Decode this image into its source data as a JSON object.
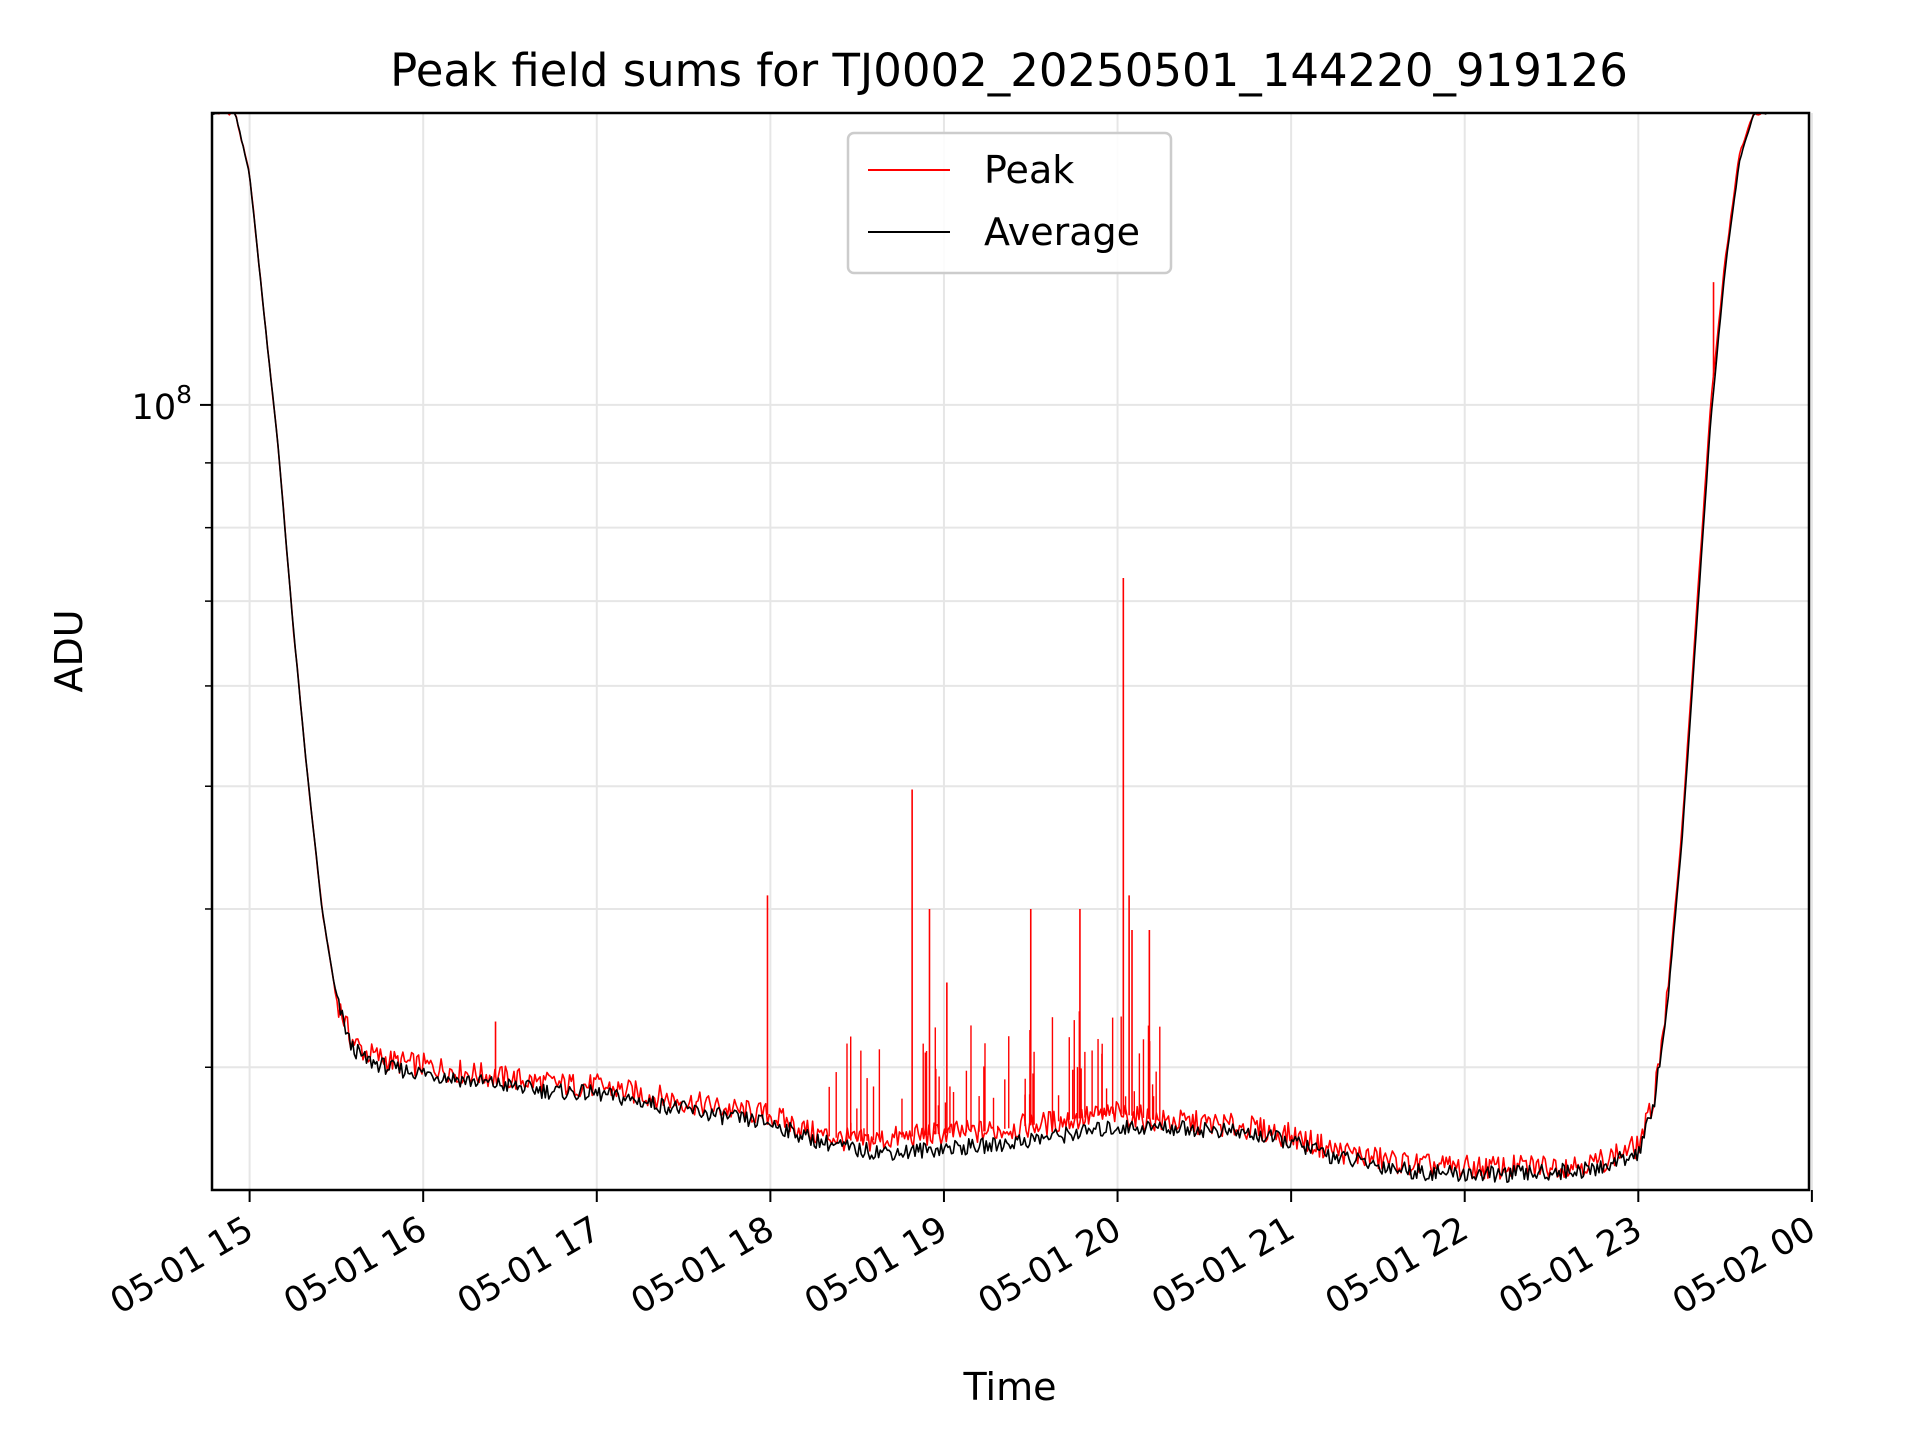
{
  "chart_data": {
    "type": "line",
    "title": "Peak field sums for TJ0002_20250501_144220_919126",
    "xlabel": "Time",
    "ylabel": "ADU",
    "yscale": "log",
    "grid": true,
    "legend_position": "top-center",
    "x_range": [
      "2025-05-01 14:47",
      "2025-05-01 23:59"
    ],
    "ylim": [
      24000000,
      170000000
    ],
    "x_ticks": [
      "05-01 15",
      "05-01 16",
      "05-01 17",
      "05-01 18",
      "05-01 19",
      "05-01 20",
      "05-01 21",
      "05-01 22",
      "05-01 23",
      "05-02 00"
    ],
    "y_ticks": [
      {
        "base": "10",
        "exp": "8",
        "value": 100000000
      }
    ],
    "colors": {
      "peak": "#ff0000",
      "average": "#000000"
    },
    "series": [
      {
        "name": "Peak",
        "color": "#ff0000",
        "x": [
          "14:47",
          "14:55",
          "15:00",
          "15:05",
          "15:10",
          "15:15",
          "15:20",
          "15:25",
          "15:30",
          "15:35",
          "15:40",
          "15:50",
          "16:00",
          "16:15",
          "16:30",
          "16:45",
          "17:00",
          "17:15",
          "17:30",
          "17:45",
          "18:00",
          "18:15",
          "18:30",
          "18:45",
          "19:00",
          "19:15",
          "19:30",
          "19:45",
          "20:00",
          "20:15",
          "20:30",
          "20:45",
          "21:00",
          "21:15",
          "21:30",
          "21:45",
          "22:00",
          "22:15",
          "22:30",
          "22:45",
          "23:00",
          "23:05",
          "23:10",
          "23:15",
          "23:20",
          "23:25",
          "23:30",
          "23:35",
          "23:40",
          "23:45"
        ],
        "y": [
          170000000,
          170000000,
          152000000,
          118000000,
          92000000,
          67000000,
          51000000,
          40000000,
          34000000,
          31600000,
          30800000,
          30300000,
          30100000,
          29700000,
          29400000,
          29100000,
          29000000,
          28600000,
          28200000,
          27800000,
          27500000,
          26600000,
          26200000,
          26400000,
          26600000,
          26700000,
          27000000,
          27300000,
          27600000,
          27200000,
          27100000,
          26900000,
          26500000,
          25800000,
          25400000,
          25100000,
          25000000,
          25000000,
          25100000,
          25200000,
          26000000,
          28000000,
          34000000,
          46000000,
          68000000,
          100000000,
          130000000,
          158000000,
          170000000,
          170000000
        ],
        "spikes": [
          {
            "x": "16:25",
            "y": 32600000
          },
          {
            "x": "17:59",
            "y": 41000000
          },
          {
            "x": "18:49",
            "y": 49700000
          },
          {
            "x": "18:55",
            "y": 40000000
          },
          {
            "x": "19:01",
            "y": 35000000
          },
          {
            "x": "19:30",
            "y": 40000000
          },
          {
            "x": "19:47",
            "y": 40000000
          },
          {
            "x": "20:02",
            "y": 73000000
          },
          {
            "x": "20:04",
            "y": 41000000
          },
          {
            "x": "20:05",
            "y": 38500000
          },
          {
            "x": "20:11",
            "y": 38500000
          },
          {
            "x": "23:26",
            "y": 125000000
          }
        ]
      },
      {
        "name": "Average",
        "color": "#000000",
        "x": [
          "14:47",
          "14:55",
          "15:00",
          "15:05",
          "15:10",
          "15:15",
          "15:20",
          "15:25",
          "15:30",
          "15:35",
          "15:40",
          "15:50",
          "16:00",
          "16:15",
          "16:30",
          "16:45",
          "17:00",
          "17:15",
          "17:30",
          "17:45",
          "18:00",
          "18:15",
          "18:30",
          "18:45",
          "19:00",
          "19:15",
          "19:30",
          "19:45",
          "20:00",
          "20:15",
          "20:30",
          "20:45",
          "21:00",
          "21:15",
          "21:30",
          "21:45",
          "22:00",
          "22:15",
          "22:30",
          "22:45",
          "23:00",
          "23:05",
          "23:10",
          "23:15",
          "23:20",
          "23:25",
          "23:30",
          "23:35",
          "23:40",
          "23:45"
        ],
        "y": [
          170000000,
          170000000,
          152000000,
          118000000,
          92000000,
          67000000,
          51000000,
          40000000,
          34000000,
          31200000,
          30400000,
          29900000,
          29700000,
          29300000,
          29000000,
          28700000,
          28600000,
          28200000,
          27800000,
          27400000,
          27100000,
          26300000,
          25800000,
          25700000,
          25900000,
          26000000,
          26300000,
          26600000,
          26900000,
          26900000,
          26800000,
          26600000,
          26200000,
          25500000,
          25100000,
          24800000,
          24700000,
          24700000,
          24800000,
          24900000,
          25700000,
          27700000,
          33500000,
          45000000,
          66000000,
          97000000,
          128000000,
          156000000,
          170000000,
          170000000
        ]
      }
    ]
  }
}
